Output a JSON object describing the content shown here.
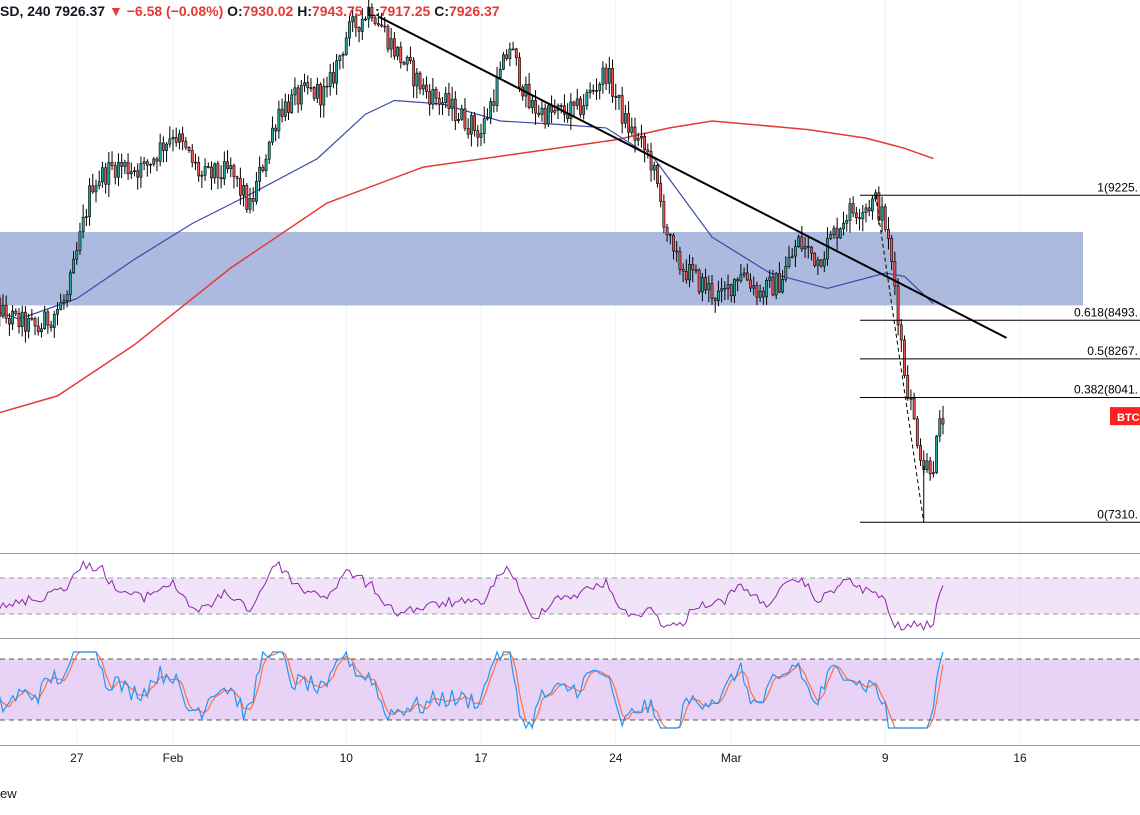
{
  "header": {
    "symbol": "SD, 240",
    "last": "7926.37",
    "change": "▼ −6.58 (−0.08%)",
    "o_label": "O:",
    "o_value": "7930.02",
    "h_label": "H:",
    "h_value": "7943.75",
    "l_label": "L:",
    "l_value": "7917.25",
    "c_label": "C:",
    "c_value": "7926.37"
  },
  "footer": {
    "text": "ew"
  },
  "colors": {
    "up": "#26a69a",
    "down": "#ef5350",
    "candle_border": "#000000",
    "sma_short": "#3949ab",
    "sma_long": "#e53935",
    "zone": "#8c9fd2",
    "rsi": "#8e24aa",
    "stoch_k": "#2196f3",
    "stoch_d": "#ff7043",
    "badge": "#ff1f1f"
  },
  "chart_data": {
    "type": "candlestick",
    "symbol_fragment": "SD",
    "timeframe": "240",
    "x_ticks": [
      "27",
      "Feb",
      "10",
      "17",
      "24",
      "Mar",
      "9",
      "16"
    ],
    "ylim": [
      7130,
      10240
    ],
    "resistance_zone": [
      8580,
      9010
    ],
    "fibonacci": [
      {
        "ratio": "1",
        "label": "1(9225.",
        "price": 9225
      },
      {
        "ratio": "0.618",
        "label": "0.618(8493.",
        "price": 8493
      },
      {
        "ratio": "0.5",
        "label": "0.5(8267.",
        "price": 8267
      },
      {
        "ratio": "0.382",
        "label": "0.382(8041.",
        "price": 8041
      },
      {
        "ratio": "0",
        "label": "0(7310.",
        "price": 7310
      }
    ],
    "price_badge": "BTC",
    "price_anchors": [
      {
        "day": 22.0,
        "price": 8700
      },
      {
        "day": 23.3,
        "price": 8510
      },
      {
        "day": 25.0,
        "price": 8440
      },
      {
        "day": 26.5,
        "price": 8620
      },
      {
        "day": 27.8,
        "price": 9300
      },
      {
        "day": 29.0,
        "price": 9400
      },
      {
        "day": 30.5,
        "price": 9380
      },
      {
        "day": 32.0,
        "price": 9600
      },
      {
        "day": 33.5,
        "price": 9330
      },
      {
        "day": 35.0,
        "price": 9360
      },
      {
        "day": 36.0,
        "price": 9150
      },
      {
        "day": 37.5,
        "price": 9730
      },
      {
        "day": 39.0,
        "price": 9830
      },
      {
        "day": 40.0,
        "price": 9820
      },
      {
        "day": 41.0,
        "price": 10160
      },
      {
        "day": 42.3,
        "price": 10330
      },
      {
        "day": 43.5,
        "price": 10080
      },
      {
        "day": 45.0,
        "price": 9850
      },
      {
        "day": 46.5,
        "price": 9730
      },
      {
        "day": 48.0,
        "price": 9590
      },
      {
        "day": 49.5,
        "price": 10100
      },
      {
        "day": 50.5,
        "price": 9750
      },
      {
        "day": 51.5,
        "price": 9700
      },
      {
        "day": 53.0,
        "price": 9720
      },
      {
        "day": 54.5,
        "price": 9950
      },
      {
        "day": 55.5,
        "price": 9650
      },
      {
        "day": 56.8,
        "price": 9440
      },
      {
        "day": 58.0,
        "price": 8850
      },
      {
        "day": 59.3,
        "price": 8720
      },
      {
        "day": 60.5,
        "price": 8620
      },
      {
        "day": 61.5,
        "price": 8790
      },
      {
        "day": 62.5,
        "price": 8650
      },
      {
        "day": 63.5,
        "price": 8720
      },
      {
        "day": 64.5,
        "price": 8950
      },
      {
        "day": 65.5,
        "price": 8850
      },
      {
        "day": 67.0,
        "price": 9120
      },
      {
        "day": 68.5,
        "price": 9190
      },
      {
        "day": 69.0,
        "price": 9050
      },
      {
        "day": 69.5,
        "price": 8700
      },
      {
        "day": 70.0,
        "price": 8200
      },
      {
        "day": 70.5,
        "price": 7900
      },
      {
        "day": 71.0,
        "price": 7640
      },
      {
        "day": 71.5,
        "price": 7660
      },
      {
        "day": 71.8,
        "price": 7850
      },
      {
        "day": 72.0,
        "price": 7920
      }
    ],
    "sma_short_anchors": [
      {
        "day": 22.0,
        "price": 8580
      },
      {
        "day": 24.0,
        "price": 8500
      },
      {
        "day": 27.0,
        "price": 8620
      },
      {
        "day": 30.0,
        "price": 8850
      },
      {
        "day": 33.0,
        "price": 9060
      },
      {
        "day": 36.0,
        "price": 9230
      },
      {
        "day": 39.5,
        "price": 9440
      },
      {
        "day": 42.0,
        "price": 9700
      },
      {
        "day": 43.5,
        "price": 9780
      },
      {
        "day": 46.0,
        "price": 9760
      },
      {
        "day": 49.0,
        "price": 9660
      },
      {
        "day": 52.0,
        "price": 9640
      },
      {
        "day": 54.5,
        "price": 9620
      },
      {
        "day": 57.0,
        "price": 9440
      },
      {
        "day": 60.0,
        "price": 8980
      },
      {
        "day": 63.0,
        "price": 8770
      },
      {
        "day": 66.0,
        "price": 8680
      },
      {
        "day": 69.0,
        "price": 8770
      },
      {
        "day": 70.0,
        "price": 8750
      },
      {
        "day": 71.5,
        "price": 8590
      }
    ],
    "sma_long_anchors": [
      {
        "day": 22.0,
        "price": 7920
      },
      {
        "day": 26.0,
        "price": 8050
      },
      {
        "day": 30.0,
        "price": 8350
      },
      {
        "day": 35.0,
        "price": 8800
      },
      {
        "day": 40.0,
        "price": 9180
      },
      {
        "day": 45.0,
        "price": 9390
      },
      {
        "day": 50.0,
        "price": 9470
      },
      {
        "day": 55.0,
        "price": 9550
      },
      {
        "day": 57.8,
        "price": 9620
      },
      {
        "day": 60.0,
        "price": 9660
      },
      {
        "day": 62.0,
        "price": 9640
      },
      {
        "day": 65.0,
        "price": 9610
      },
      {
        "day": 68.0,
        "price": 9560
      },
      {
        "day": 70.0,
        "price": 9500
      },
      {
        "day": 71.5,
        "price": 9440
      }
    ],
    "trendline": [
      {
        "day": 42.7,
        "price": 10270
      },
      {
        "day": 75.3,
        "price": 8390
      }
    ]
  }
}
